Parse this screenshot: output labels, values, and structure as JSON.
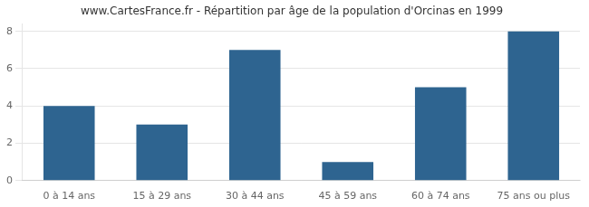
{
  "chart_data": {
    "type": "bar",
    "title": "www.CartesFrance.fr - Répartition par âge de la population d'Orcinas en 1999",
    "categories": [
      "0 à 14 ans",
      "15 à 29 ans",
      "30 à 44 ans",
      "45 à 59 ans",
      "60 à 74 ans",
      "75 ans ou plus"
    ],
    "values": [
      4,
      3,
      7,
      1,
      5,
      8
    ],
    "color": "#2e6490",
    "ylim": [
      0,
      8.4
    ],
    "yticks": [
      0,
      2,
      4,
      6,
      8
    ],
    "grid": true
  }
}
